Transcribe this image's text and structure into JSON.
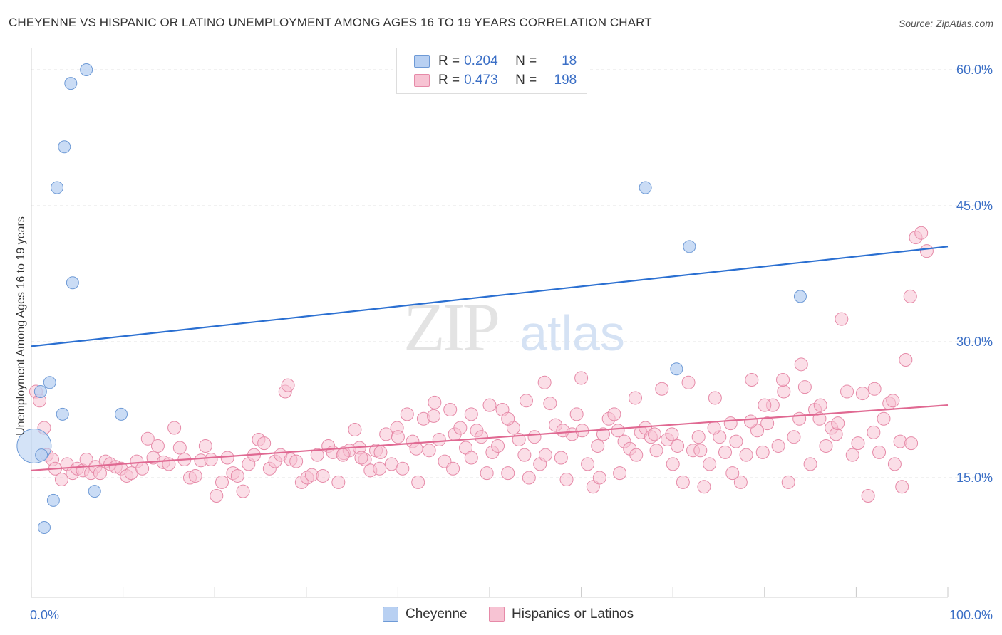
{
  "header": {
    "title": "CHEYENNE VS HISPANIC OR LATINO UNEMPLOYMENT AMONG AGES 16 TO 19 YEARS CORRELATION CHART",
    "source": "Source: ZipAtlas.com"
  },
  "watermark": {
    "zip": "ZIP",
    "atlas": "atlas"
  },
  "legend": {
    "rows": [
      {
        "r_label": "R =",
        "r_value": "0.204",
        "n_label": "N =",
        "n_value": "18"
      },
      {
        "r_label": "R =",
        "r_value": "0.473",
        "n_label": "N =",
        "n_value": "198"
      }
    ],
    "bottom": [
      "Cheyenne",
      "Hispanics or Latinos"
    ]
  },
  "colors": {
    "cheyenne_fill": "#b8d0f2",
    "cheyenne_stroke": "#6e9ad6",
    "cheyenne_line": "#2a6fd1",
    "hispanic_fill": "#f7c3d3",
    "hispanic_stroke": "#e68aa8",
    "hispanic_line": "#e06992",
    "tick_label": "#3b6fc6",
    "grid": "#e3e3e3"
  },
  "chart_data": {
    "type": "scatter",
    "title": "CHEYENNE VS HISPANIC OR LATINO UNEMPLOYMENT AMONG AGES 16 TO 19 YEARS CORRELATION CHART",
    "xlabel": "",
    "ylabel": "Unemployment Among Ages 16 to 19 years",
    "xlim": [
      0,
      100
    ],
    "ylim": [
      0,
      64
    ],
    "x_tick_labels": [
      "0.0%",
      "100.0%"
    ],
    "y_ticks": [
      15,
      30,
      45,
      60
    ],
    "y_tick_labels": [
      "15.0%",
      "30.0%",
      "45.0%",
      "60.0%"
    ],
    "grid": true,
    "legend_position": "top-center",
    "series": [
      {
        "name": "Cheyenne",
        "r": 0.204,
        "n": 18,
        "trend": [
          [
            0,
            29.5
          ],
          [
            100,
            40.5
          ]
        ],
        "points": [
          [
            0.3,
            18.5
          ],
          [
            1.1,
            17.5
          ],
          [
            1.4,
            9.5
          ],
          [
            2.0,
            25.5
          ],
          [
            2.4,
            12.5
          ],
          [
            2.8,
            47.0
          ],
          [
            3.4,
            22.0
          ],
          [
            3.6,
            51.5
          ],
          [
            4.3,
            58.5
          ],
          [
            4.5,
            36.5
          ],
          [
            6.0,
            60.0
          ],
          [
            6.9,
            13.5
          ],
          [
            9.8,
            22.0
          ],
          [
            67.0,
            47.0
          ],
          [
            71.8,
            40.5
          ],
          [
            83.9,
            35.0
          ],
          [
            70.4,
            27.0
          ],
          [
            1.0,
            24.5
          ]
        ]
      },
      {
        "name": "Hispanics or Latinos",
        "r": 0.473,
        "n": 198,
        "trend": [
          [
            0,
            15.8
          ],
          [
            100,
            23.0
          ]
        ],
        "points": [
          [
            0.5,
            24.5
          ],
          [
            0.9,
            23.5
          ],
          [
            1.4,
            20.5
          ],
          [
            1.7,
            17.5
          ],
          [
            2.3,
            17.0
          ],
          [
            2.6,
            16.0
          ],
          [
            3.3,
            14.8
          ],
          [
            3.9,
            16.5
          ],
          [
            4.5,
            15.5
          ],
          [
            5.0,
            16.0
          ],
          [
            5.6,
            15.8
          ],
          [
            6.0,
            17.0
          ],
          [
            6.5,
            15.5
          ],
          [
            7.0,
            16.2
          ],
          [
            7.5,
            15.5
          ],
          [
            8.1,
            16.8
          ],
          [
            8.6,
            16.5
          ],
          [
            9.2,
            16.2
          ],
          [
            9.8,
            16.0
          ],
          [
            10.4,
            15.2
          ],
          [
            10.9,
            15.5
          ],
          [
            11.5,
            16.8
          ],
          [
            12.1,
            16.0
          ],
          [
            12.7,
            19.3
          ],
          [
            13.3,
            17.2
          ],
          [
            13.8,
            18.5
          ],
          [
            14.4,
            16.7
          ],
          [
            15.0,
            16.5
          ],
          [
            15.6,
            20.5
          ],
          [
            16.2,
            18.3
          ],
          [
            16.7,
            17.0
          ],
          [
            17.3,
            15.0
          ],
          [
            17.9,
            15.2
          ],
          [
            18.5,
            16.9
          ],
          [
            19.0,
            18.5
          ],
          [
            19.6,
            17.0
          ],
          [
            20.2,
            13.0
          ],
          [
            20.8,
            14.5
          ],
          [
            21.4,
            17.2
          ],
          [
            22.0,
            15.5
          ],
          [
            22.5,
            15.2
          ],
          [
            23.1,
            13.5
          ],
          [
            23.7,
            16.5
          ],
          [
            24.3,
            17.5
          ],
          [
            24.8,
            19.2
          ],
          [
            25.4,
            18.8
          ],
          [
            26.0,
            16.0
          ],
          [
            26.6,
            16.8
          ],
          [
            27.2,
            17.5
          ],
          [
            27.7,
            24.5
          ],
          [
            28.3,
            17.0
          ],
          [
            28.9,
            16.8
          ],
          [
            29.5,
            14.5
          ],
          [
            30.1,
            15.0
          ],
          [
            30.6,
            15.3
          ],
          [
            31.2,
            17.5
          ],
          [
            31.8,
            15.2
          ],
          [
            32.4,
            18.5
          ],
          [
            32.9,
            17.8
          ],
          [
            33.5,
            14.5
          ],
          [
            34.1,
            17.7
          ],
          [
            34.7,
            18.0
          ],
          [
            35.3,
            20.3
          ],
          [
            35.8,
            18.3
          ],
          [
            36.4,
            17.0
          ],
          [
            37.0,
            15.8
          ],
          [
            37.6,
            18.0
          ],
          [
            38.1,
            17.8
          ],
          [
            38.7,
            19.8
          ],
          [
            39.3,
            16.5
          ],
          [
            39.9,
            20.5
          ],
          [
            40.5,
            16.0
          ],
          [
            41.0,
            22.0
          ],
          [
            41.6,
            19.0
          ],
          [
            42.2,
            14.5
          ],
          [
            42.8,
            21.5
          ],
          [
            43.4,
            18.0
          ],
          [
            43.9,
            21.8
          ],
          [
            44.5,
            19.2
          ],
          [
            45.1,
            16.8
          ],
          [
            45.7,
            22.5
          ],
          [
            46.2,
            19.8
          ],
          [
            46.8,
            20.5
          ],
          [
            47.4,
            18.3
          ],
          [
            48.0,
            17.2
          ],
          [
            48.6,
            20.2
          ],
          [
            49.1,
            19.5
          ],
          [
            49.7,
            15.5
          ],
          [
            50.3,
            17.8
          ],
          [
            50.9,
            18.5
          ],
          [
            51.4,
            22.5
          ],
          [
            52.0,
            15.5
          ],
          [
            52.6,
            20.5
          ],
          [
            53.2,
            19.2
          ],
          [
            53.8,
            17.5
          ],
          [
            54.3,
            15.0
          ],
          [
            54.9,
            19.5
          ],
          [
            55.5,
            16.5
          ],
          [
            56.1,
            17.5
          ],
          [
            56.6,
            23.2
          ],
          [
            57.2,
            20.8
          ],
          [
            57.8,
            17.2
          ],
          [
            58.4,
            14.8
          ],
          [
            59.0,
            19.8
          ],
          [
            59.5,
            22.0
          ],
          [
            60.1,
            20.2
          ],
          [
            60.7,
            16.5
          ],
          [
            61.3,
            14.0
          ],
          [
            61.8,
            18.5
          ],
          [
            62.4,
            19.8
          ],
          [
            63.0,
            21.5
          ],
          [
            63.6,
            22.0
          ],
          [
            64.2,
            15.5
          ],
          [
            64.7,
            19.0
          ],
          [
            65.3,
            18.2
          ],
          [
            65.9,
            23.8
          ],
          [
            66.5,
            20.0
          ],
          [
            67.0,
            20.5
          ],
          [
            67.6,
            19.5
          ],
          [
            68.2,
            18.0
          ],
          [
            68.8,
            24.8
          ],
          [
            69.4,
            19.2
          ],
          [
            69.9,
            19.8
          ],
          [
            70.5,
            18.5
          ],
          [
            71.1,
            14.5
          ],
          [
            71.7,
            25.5
          ],
          [
            72.2,
            18.0
          ],
          [
            72.8,
            19.5
          ],
          [
            73.4,
            14.0
          ],
          [
            74.0,
            16.5
          ],
          [
            74.6,
            23.8
          ],
          [
            75.1,
            19.5
          ],
          [
            75.7,
            17.8
          ],
          [
            76.3,
            21.0
          ],
          [
            76.9,
            19.0
          ],
          [
            77.4,
            14.5
          ],
          [
            78.0,
            17.5
          ],
          [
            78.6,
            25.8
          ],
          [
            79.2,
            20.2
          ],
          [
            79.8,
            17.8
          ],
          [
            80.3,
            21.0
          ],
          [
            80.9,
            23.0
          ],
          [
            81.5,
            18.5
          ],
          [
            82.1,
            24.5
          ],
          [
            82.6,
            14.5
          ],
          [
            83.2,
            19.5
          ],
          [
            83.8,
            21.5
          ],
          [
            84.4,
            25.0
          ],
          [
            85.0,
            16.5
          ],
          [
            85.5,
            22.5
          ],
          [
            86.1,
            23.0
          ],
          [
            86.7,
            18.5
          ],
          [
            87.3,
            20.5
          ],
          [
            87.8,
            19.8
          ],
          [
            88.4,
            32.5
          ],
          [
            89.0,
            24.5
          ],
          [
            89.6,
            17.5
          ],
          [
            90.2,
            18.8
          ],
          [
            90.7,
            24.3
          ],
          [
            91.3,
            13.0
          ],
          [
            91.9,
            20.0
          ],
          [
            92.5,
            17.8
          ],
          [
            93.0,
            21.5
          ],
          [
            93.6,
            23.2
          ],
          [
            94.2,
            16.5
          ],
          [
            94.8,
            19.0
          ],
          [
            95.4,
            28.0
          ],
          [
            95.9,
            35.0
          ],
          [
            96.5,
            41.5
          ],
          [
            97.1,
            42.0
          ],
          [
            97.7,
            40.0
          ],
          [
            96.0,
            18.8
          ],
          [
            95.0,
            14.0
          ],
          [
            94.0,
            23.5
          ],
          [
            92.0,
            24.8
          ],
          [
            88.0,
            21.0
          ],
          [
            86.0,
            21.5
          ],
          [
            84.0,
            27.5
          ],
          [
            82.0,
            25.8
          ],
          [
            80.0,
            23.0
          ],
          [
            78.5,
            21.2
          ],
          [
            76.5,
            15.5
          ],
          [
            74.5,
            20.5
          ],
          [
            73.0,
            18.0
          ],
          [
            70.0,
            16.5
          ],
          [
            68.0,
            19.8
          ],
          [
            66.0,
            17.5
          ],
          [
            64.0,
            20.2
          ],
          [
            62.0,
            15.0
          ],
          [
            60.0,
            26.0
          ],
          [
            58.0,
            20.2
          ],
          [
            56.0,
            25.5
          ],
          [
            54.0,
            23.5
          ],
          [
            52.0,
            21.5
          ],
          [
            50.0,
            23.0
          ],
          [
            48.0,
            22.0
          ],
          [
            46.0,
            16.0
          ],
          [
            44.0,
            23.3
          ],
          [
            42.0,
            18.2
          ],
          [
            40.0,
            19.5
          ],
          [
            38.0,
            16.0
          ],
          [
            36.0,
            17.2
          ],
          [
            34.0,
            17.5
          ],
          [
            28.0,
            25.2
          ]
        ]
      }
    ]
  }
}
